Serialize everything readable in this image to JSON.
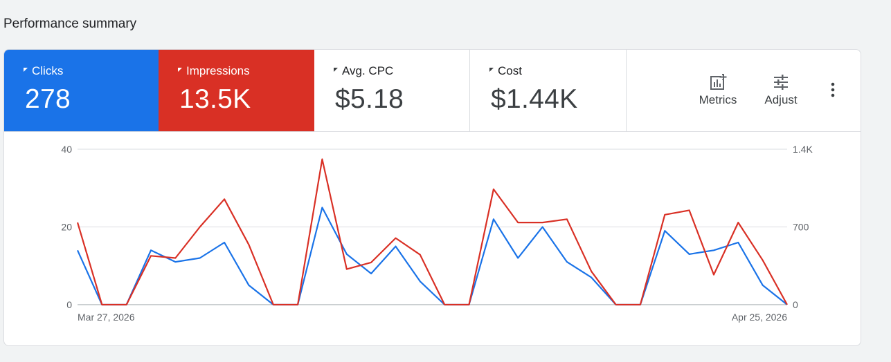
{
  "page": {
    "title": "Performance summary"
  },
  "metrics": [
    {
      "label": "Clicks",
      "value": "278"
    },
    {
      "label": "Impressions",
      "value": "13.5K"
    },
    {
      "label": "Avg. CPC",
      "value": "$5.18"
    },
    {
      "label": "Cost",
      "value": "$1.44K"
    }
  ],
  "toolbar": {
    "metrics_label": "Metrics",
    "adjust_label": "Adjust",
    "metrics_icon": "metrics-chart-icon",
    "adjust_icon": "tune-icon",
    "more_icon": "more-vert-icon"
  },
  "colors": {
    "clicks": "#1a73e8",
    "impressions": "#d93025"
  },
  "chart_data": {
    "type": "line",
    "x_start_label": "Mar 27, 2026",
    "x_end_label": "Apr 25, 2026",
    "left_axis": {
      "ticks": [
        "0",
        "20",
        "40"
      ],
      "ylim": [
        0,
        40
      ]
    },
    "right_axis": {
      "ticks": [
        "0",
        "700",
        "1.4K"
      ],
      "ylim": [
        0,
        1400
      ]
    },
    "grid": true,
    "series": [
      {
        "name": "Clicks",
        "axis": "left",
        "color": "#1a73e8",
        "values": [
          14,
          0,
          0,
          14,
          11,
          12,
          16,
          5,
          0,
          0,
          25,
          13,
          8,
          15,
          6,
          0,
          0,
          22,
          12,
          20,
          11,
          7,
          0,
          0,
          19,
          13,
          14,
          16,
          5,
          0
        ]
      },
      {
        "name": "Impressions",
        "axis": "right",
        "color": "#d93025",
        "values": [
          740,
          0,
          0,
          440,
          420,
          700,
          950,
          540,
          0,
          0,
          1310,
          320,
          380,
          600,
          450,
          0,
          0,
          1040,
          740,
          740,
          770,
          300,
          0,
          0,
          810,
          850,
          270,
          740,
          400,
          0
        ]
      }
    ]
  }
}
